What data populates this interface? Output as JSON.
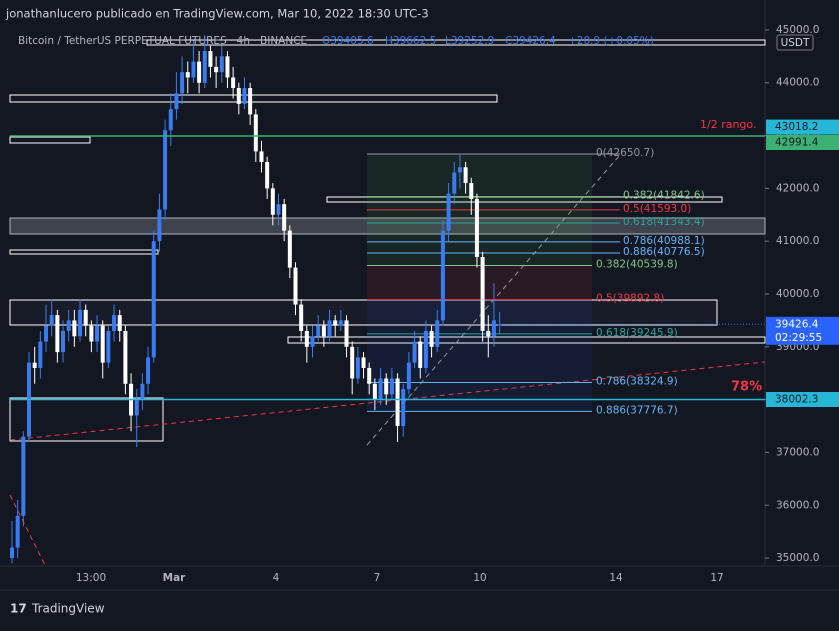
{
  "chart_data": {
    "type": "candlestick",
    "byline": "jonathanlucero publicado en TradingView.com, Mar 10, 2022 18:30 UTC-3",
    "symbol": "Bitcoin / TetherUS PERPETUAL FUTURES · 4h · BINANCE",
    "ohlc_text": [
      "O39405.6",
      "H39662.5",
      "L39252.9",
      "C39426.4",
      "+20.9 (+0.05%)"
    ],
    "currency": "USDT",
    "brand": "TradingView",
    "up_color": "#3a7cf0",
    "down_color": "#ffffff",
    "ylim": [
      34850,
      45150
    ],
    "yticks": [
      {
        "value": 35000,
        "label": "35000.0"
      },
      {
        "value": 36000,
        "label": "36000.0"
      },
      {
        "value": 37000,
        "label": "37000.0"
      },
      {
        "value": 38000,
        "label": "38000.0"
      },
      {
        "value": 39000,
        "label": "39000.0"
      },
      {
        "value": 40000,
        "label": "40000.0"
      },
      {
        "value": 41000,
        "label": "41000.0"
      },
      {
        "value": 42000,
        "label": "42000.0"
      },
      {
        "value": 43000,
        "label": "43000.0"
      },
      {
        "value": 44000,
        "label": "44000.0"
      },
      {
        "value": 45000,
        "label": "45000.0"
      }
    ],
    "xtick_labels": [
      "13:00",
      "Mar",
      "4",
      "7",
      "10",
      "14",
      "17"
    ],
    "candles": [
      [
        35000,
        35700,
        34900,
        35200
      ],
      [
        35200,
        36100,
        35000,
        35800
      ],
      [
        35800,
        37400,
        35600,
        37300
      ],
      [
        37300,
        38900,
        37200,
        38700
      ],
      [
        38700,
        39000,
        38300,
        38600
      ],
      [
        38600,
        39300,
        38400,
        39100
      ],
      [
        39100,
        39800,
        38900,
        39400
      ],
      [
        39400,
        39900,
        39200,
        39600
      ],
      [
        39600,
        39700,
        38700,
        38900
      ],
      [
        38900,
        39500,
        38700,
        39300
      ],
      [
        39300,
        39700,
        39100,
        39500
      ],
      [
        39500,
        39700,
        39000,
        39200
      ],
      [
        39200,
        39900,
        39100,
        39700
      ],
      [
        39700,
        39800,
        39200,
        39400
      ],
      [
        39400,
        39500,
        38900,
        39100
      ],
      [
        39100,
        39600,
        38900,
        39400
      ],
      [
        39400,
        39500,
        38400,
        38700
      ],
      [
        38700,
        39400,
        38600,
        39300
      ],
      [
        39300,
        39800,
        39100,
        39600
      ],
      [
        39600,
        39700,
        39100,
        39300
      ],
      [
        39300,
        39400,
        38100,
        38300
      ],
      [
        38300,
        38500,
        37400,
        37700
      ],
      [
        37700,
        38200,
        37100,
        38000
      ],
      [
        38000,
        38500,
        37800,
        38300
      ],
      [
        38300,
        39000,
        38100,
        38800
      ],
      [
        38800,
        41200,
        38700,
        41000
      ],
      [
        41000,
        41900,
        40800,
        41600
      ],
      [
        41600,
        43300,
        41400,
        43100
      ],
      [
        43100,
        43800,
        42800,
        43500
      ],
      [
        43500,
        44200,
        43300,
        43800
      ],
      [
        43800,
        44500,
        43600,
        44200
      ],
      [
        44200,
        44400,
        43800,
        44100
      ],
      [
        44100,
        44800,
        44000,
        44400
      ],
      [
        44400,
        44600,
        43800,
        44000
      ],
      [
        44000,
        44900,
        43900,
        44600
      ],
      [
        44600,
        44700,
        44100,
        44300
      ],
      [
        44300,
        44500,
        43900,
        44200
      ],
      [
        44200,
        44700,
        44000,
        44500
      ],
      [
        44500,
        44600,
        43900,
        44100
      ],
      [
        44100,
        44300,
        43700,
        43900
      ],
      [
        43900,
        44000,
        43400,
        43600
      ],
      [
        43600,
        44100,
        43500,
        43900
      ],
      [
        43900,
        44000,
        43200,
        43400
      ],
      [
        43400,
        43500,
        42500,
        42700
      ],
      [
        42700,
        42900,
        42300,
        42500
      ],
      [
        42500,
        42600,
        41800,
        42000
      ],
      [
        42000,
        42100,
        41300,
        41500
      ],
      [
        41500,
        41900,
        41300,
        41700
      ],
      [
        41700,
        41800,
        41000,
        41200
      ],
      [
        41200,
        41300,
        40300,
        40500
      ],
      [
        40500,
        40600,
        39600,
        39800
      ],
      [
        39800,
        39900,
        39100,
        39300
      ],
      [
        39300,
        39400,
        38700,
        39000
      ],
      [
        39000,
        39400,
        38800,
        39200
      ],
      [
        39200,
        39600,
        39100,
        39400
      ],
      [
        39400,
        39500,
        39000,
        39200
      ],
      [
        39200,
        39700,
        39100,
        39500
      ],
      [
        39500,
        39600,
        39200,
        39400
      ],
      [
        39400,
        39700,
        39300,
        39500
      ],
      [
        39500,
        39600,
        38800,
        39000
      ],
      [
        39000,
        39100,
        38100,
        38400
      ],
      [
        38400,
        39000,
        38300,
        38800
      ],
      [
        38800,
        38900,
        38400,
        38600
      ],
      [
        38600,
        38700,
        38100,
        38300
      ],
      [
        38300,
        38400,
        37800,
        38000
      ],
      [
        38000,
        38600,
        37900,
        38400
      ],
      [
        38400,
        38500,
        37900,
        38100
      ],
      [
        38100,
        38600,
        38000,
        38400
      ],
      [
        38400,
        38500,
        37200,
        37500
      ],
      [
        37500,
        38300,
        37300,
        38200
      ],
      [
        38200,
        38900,
        38100,
        38700
      ],
      [
        38700,
        39300,
        38600,
        39100
      ],
      [
        39100,
        39200,
        38400,
        38600
      ],
      [
        38600,
        39500,
        38500,
        39300
      ],
      [
        39300,
        39400,
        38800,
        39000
      ],
      [
        39000,
        39700,
        38900,
        39500
      ],
      [
        39500,
        41400,
        39400,
        41200
      ],
      [
        41200,
        42100,
        41000,
        41900
      ],
      [
        41900,
        42500,
        41700,
        42300
      ],
      [
        42300,
        42650.7,
        42000,
        42400
      ],
      [
        42400,
        42500,
        41900,
        42100
      ],
      [
        42100,
        42200,
        41500,
        41800
      ],
      [
        41800,
        41900,
        40500,
        40700
      ],
      [
        40700,
        40800,
        39100,
        39300
      ],
      [
        39300,
        39600,
        38800,
        39200
      ],
      [
        39200,
        40200,
        39000,
        39500
      ],
      [
        39405.6,
        39662.5,
        39252.9,
        39426.4
      ]
    ],
    "price_labels": [
      {
        "value": 43018.2,
        "color": "#26b6d6",
        "text_color": "#131722",
        "line": false
      },
      {
        "value": 42991.4,
        "color": "#3bb273",
        "text_color": "#131722",
        "line": true
      },
      {
        "value": 39426.4,
        "color": "#2962ff",
        "text_color": "#ffffff",
        "line": false
      },
      {
        "value": 38002.3,
        "color": "#26b6d6",
        "text_color": "#131722",
        "line": true
      }
    ],
    "countdown": "02:29:55",
    "fib_upper": [
      {
        "label": "0(42650.7)",
        "value": 42650.7,
        "color": "#9598a1"
      },
      {
        "label": "0.382(41842.6)",
        "value": 41842.6,
        "color": "#81c784"
      },
      {
        "label": "0.5(41593.0)",
        "value": 41593.0,
        "color": "#f23645"
      },
      {
        "label": "0.618(41343.4)",
        "value": 41343.4,
        "color": "#26a69a"
      },
      {
        "label": "0.786(40988.1)",
        "value": 40988.1,
        "color": "#64b5f6"
      },
      {
        "label": "0.886(40776.5)",
        "value": 40776.5,
        "color": "#64b5f6"
      }
    ],
    "fib_lower": [
      {
        "label": "0.382(40539.8)",
        "value": 40539.8,
        "color": "#81c784"
      },
      {
        "label": "0.5(39892.8)",
        "value": 39892.8,
        "color": "#f23645"
      },
      {
        "label": "0.618(39245.9)",
        "value": 39245.9,
        "color": "#26a69a"
      },
      {
        "label": "0.786(38324.9)",
        "value": 38324.9,
        "color": "#64b5f6"
      },
      {
        "label": "0.886(37776.7)",
        "value": 37776.7,
        "color": "#64b5f6"
      }
    ],
    "annotations": [
      "1/2 rango.",
      "78%"
    ]
  }
}
